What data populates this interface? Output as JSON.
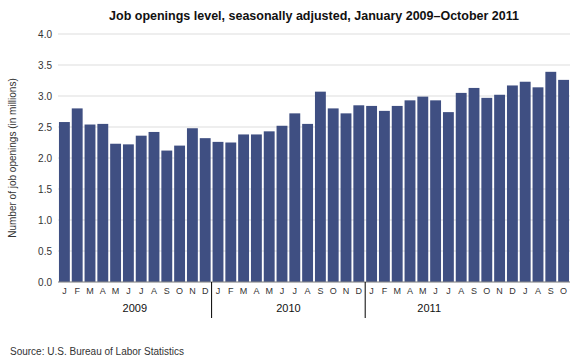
{
  "chart_data": {
    "type": "bar",
    "title": "Job openings level, seasonally adjusted, January 2009–October 2011",
    "ylabel": "Number of job openings (in millions)",
    "categories": [
      "J",
      "F",
      "M",
      "A",
      "M",
      "J",
      "J",
      "A",
      "S",
      "O",
      "N",
      "D",
      "J",
      "F",
      "M",
      "A",
      "M",
      "J",
      "J",
      "A",
      "S",
      "O",
      "N",
      "D",
      "J",
      "F",
      "M",
      "A",
      "M",
      "J",
      "J",
      "A",
      "S",
      "O",
      "N",
      "D",
      "J",
      "A",
      "S",
      "O"
    ],
    "values": [
      2.58,
      2.8,
      2.54,
      2.55,
      2.23,
      2.22,
      2.36,
      2.42,
      2.12,
      2.2,
      2.48,
      2.32,
      2.26,
      2.25,
      2.38,
      2.38,
      2.43,
      2.52,
      2.72,
      2.55,
      3.07,
      2.8,
      2.72,
      2.85,
      2.84,
      2.76,
      2.84,
      2.93,
      2.99,
      2.93,
      2.74,
      3.05,
      3.13,
      2.97,
      3.02,
      3.17,
      3.23,
      3.14,
      3.39,
      3.26
    ],
    "color": "#3F4F82",
    "ylim": [
      0.0,
      4.0
    ],
    "yticks": [
      {
        "value": 0,
        "label": "0.0"
      },
      0.5,
      {
        "value": 1,
        "label": "1.0"
      },
      1.5,
      {
        "value": 2,
        "label": "2.0"
      },
      2.5,
      {
        "value": 3,
        "label": "3.0"
      },
      3.5,
      {
        "value": 4,
        "label": "4.0"
      }
    ],
    "grid": true,
    "annotations": [
      {
        "text": "2009",
        "x": 5.5
      },
      {
        "text": "2010",
        "x": 17.5
      },
      {
        "text": "2011",
        "x": 28.5
      },
      {
        "text": "Source: U.S. Bureau of Labor Statistics"
      }
    ],
    "dividers": [
      11.5,
      23.5
    ]
  }
}
